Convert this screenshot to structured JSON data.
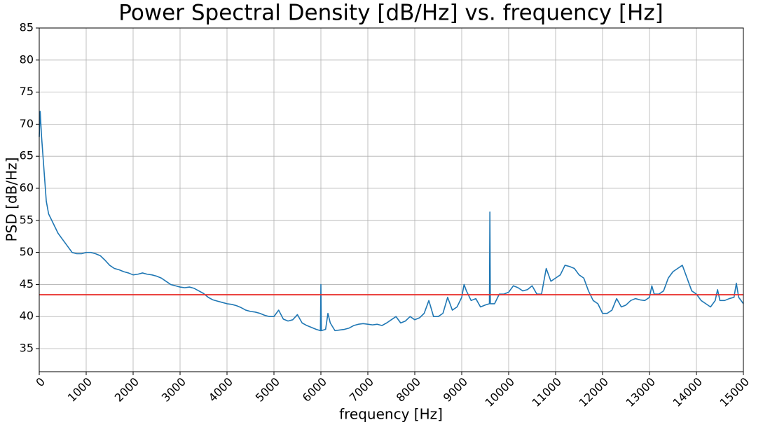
{
  "chart_data": {
    "type": "line",
    "title": "Power Spectral Density [dB/Hz] vs. frequency [Hz]",
    "xlabel": "frequency [Hz]",
    "ylabel": "PSD [dB/Hz]",
    "color": "#1f77b4",
    "x": [
      0,
      20,
      50,
      100,
      150,
      200,
      300,
      400,
      500,
      600,
      700,
      800,
      900,
      1000,
      1100,
      1200,
      1300,
      1400,
      1500,
      1600,
      1700,
      1800,
      1900,
      2000,
      2100,
      2200,
      2300,
      2400,
      2500,
      2600,
      2700,
      2800,
      2900,
      3000,
      3100,
      3200,
      3300,
      3400,
      3500,
      3600,
      3700,
      3800,
      3900,
      4000,
      4100,
      4200,
      4300,
      4400,
      4500,
      4600,
      4700,
      4800,
      4900,
      5000,
      5100,
      5200,
      5300,
      5400,
      5500,
      5600,
      5700,
      5800,
      5900,
      5990,
      6000,
      6010,
      6100,
      6150,
      6200,
      6300,
      6400,
      6500,
      6600,
      6700,
      6800,
      6900,
      7000,
      7100,
      7200,
      7300,
      7400,
      7500,
      7600,
      7700,
      7800,
      7900,
      8000,
      8100,
      8200,
      8300,
      8400,
      8500,
      8600,
      8700,
      8800,
      8900,
      9000,
      9050,
      9100,
      9200,
      9300,
      9400,
      9500,
      9590,
      9600,
      9610,
      9700,
      9800,
      9900,
      10000,
      10100,
      10200,
      10300,
      10400,
      10500,
      10600,
      10700,
      10800,
      10900,
      11000,
      11100,
      11200,
      11300,
      11400,
      11500,
      11600,
      11700,
      11800,
      11900,
      12000,
      12100,
      12200,
      12300,
      12400,
      12500,
      12600,
      12700,
      12800,
      12900,
      13000,
      13050,
      13100,
      13200,
      13300,
      13400,
      13500,
      13600,
      13700,
      13800,
      13900,
      14000,
      14100,
      14200,
      14300,
      14400,
      14450,
      14500,
      14600,
      14700,
      14800,
      14850,
      14900,
      15000
    ],
    "values": [
      68,
      72,
      68,
      63,
      58,
      56,
      54.5,
      53,
      52,
      51,
      50,
      49.8,
      49.8,
      50,
      50,
      49.8,
      49.5,
      48.8,
      48,
      47.5,
      47.3,
      47,
      46.8,
      46.5,
      46.6,
      46.8,
      46.6,
      46.5,
      46.3,
      46,
      45.5,
      45,
      44.8,
      44.6,
      44.5,
      44.6,
      44.4,
      44,
      43.6,
      43,
      42.6,
      42.4,
      42.2,
      42,
      41.9,
      41.7,
      41.4,
      41,
      40.8,
      40.7,
      40.5,
      40.2,
      40,
      40,
      41,
      39.6,
      39.3,
      39.5,
      40.3,
      39,
      38.6,
      38.3,
      38,
      37.8,
      45,
      37.8,
      38,
      40.5,
      39,
      37.8,
      37.9,
      38,
      38.2,
      38.6,
      38.8,
      38.9,
      38.8,
      38.7,
      38.8,
      38.6,
      39,
      39.5,
      40,
      39,
      39.3,
      40,
      39.5,
      39.8,
      40.5,
      42.5,
      40,
      40,
      40.5,
      43,
      41,
      41.5,
      43,
      45,
      44,
      42.5,
      42.8,
      41.5,
      41.8,
      42,
      56.3,
      42,
      42,
      43.5,
      43.5,
      43.8,
      44.8,
      44.5,
      44,
      44.2,
      44.8,
      43.5,
      43.5,
      47.5,
      45.5,
      46,
      46.5,
      48,
      47.8,
      47.5,
      46.5,
      46,
      44,
      42.5,
      42,
      40.5,
      40.5,
      41,
      42.8,
      41.5,
      41.8,
      42.5,
      42.8,
      42.6,
      42.5,
      43,
      44.8,
      43.5,
      43.5,
      44,
      46,
      47,
      47.5,
      48,
      46,
      44,
      43.5,
      42.5,
      42,
      41.5,
      42.5,
      44.2,
      42.5,
      42.5,
      42.8,
      43,
      45.2,
      43,
      42
    ],
    "hline": {
      "value": 43.4,
      "color": "#e8302c"
    },
    "xlim": [
      0,
      15000
    ],
    "xticks": [
      0,
      1000,
      2000,
      3000,
      4000,
      5000,
      6000,
      7000,
      8000,
      9000,
      10000,
      11000,
      12000,
      13000,
      14000,
      15000
    ],
    "ylim": [
      31.4,
      85
    ],
    "yticks": [
      35,
      40,
      45,
      50,
      55,
      60,
      65,
      70,
      75,
      80,
      85
    ],
    "grid": true
  }
}
